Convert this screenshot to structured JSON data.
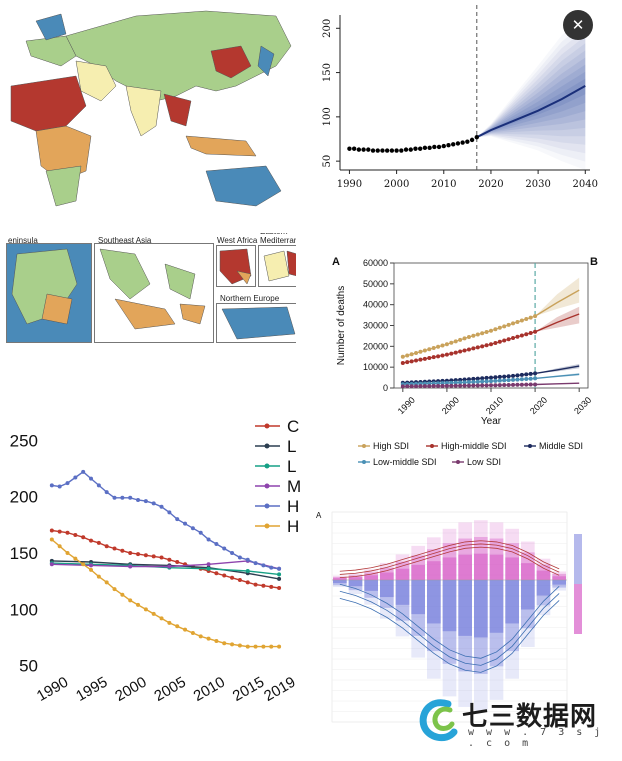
{
  "viewer": {
    "close_icon": "close-icon"
  },
  "maps": {
    "insets": [
      {
        "label": "eninsula"
      },
      {
        "label": "Southeast Asia"
      },
      {
        "label": "West Africa"
      },
      {
        "label": "Eastern Mediterrane"
      },
      {
        "label": "Northern Europe"
      }
    ],
    "colors": {
      "ocean": "#ffffff",
      "green": "#a9cf8b",
      "blue": "#4a8ab8",
      "red": "#b4382f",
      "orange": "#e2a55a",
      "yellow": "#f6eeb0"
    }
  },
  "chart_data": [
    {
      "id": "projection",
      "type": "line",
      "x_ticks": [
        "1990",
        "2000",
        "2010",
        "2020",
        "2030",
        "2040"
      ],
      "y_ticks": [
        "50",
        "100",
        "150",
        "200"
      ],
      "xlim": [
        1988,
        2041
      ],
      "ylim": [
        40,
        215
      ],
      "observed": {
        "x": [
          1990,
          1991,
          1992,
          1993,
          1994,
          1995,
          1996,
          1997,
          1998,
          1999,
          2000,
          2001,
          2002,
          2003,
          2004,
          2005,
          2006,
          2007,
          2008,
          2009,
          2010,
          2011,
          2012,
          2013,
          2014,
          2015,
          2016,
          2017
        ],
        "y": [
          64,
          64,
          63,
          63,
          63,
          62,
          62,
          62,
          62,
          62,
          62,
          62,
          63,
          63,
          64,
          64,
          65,
          65,
          66,
          66,
          67,
          68,
          69,
          70,
          71,
          72,
          74,
          77
        ]
      },
      "forecast": {
        "x": [
          2017,
          2020,
          2025,
          2030,
          2035,
          2040
        ],
        "y": [
          77,
          85,
          96,
          107,
          120,
          135
        ]
      },
      "forecast_band": {
        "x": [
          2017,
          2020,
          2025,
          2030,
          2035,
          2040
        ],
        "low": [
          77,
          78,
          70,
          62,
          50,
          40
        ],
        "high": [
          77,
          92,
          125,
          158,
          192,
          215
        ]
      },
      "vline_x": 2017
    },
    {
      "id": "sdi_deaths",
      "type": "line",
      "panel_labels": [
        "A",
        "B"
      ],
      "ylabel": "Number of deaths",
      "xlabel": "Year",
      "x_ticks": [
        "1990",
        "2000",
        "2010",
        "2020",
        "2030"
      ],
      "y_ticks": [
        "0",
        "10000",
        "20000",
        "30000",
        "40000",
        "50000",
        "60000"
      ],
      "xlim": [
        1988,
        2032
      ],
      "ylim": [
        0,
        60000
      ],
      "vline_x": 2020,
      "series": [
        {
          "name": "High SDI",
          "color": "#c9a25b",
          "x": [
            1990,
            1995,
            2000,
            2005,
            2010,
            2015,
            2020
          ],
          "y": [
            15000,
            18000,
            21000,
            24500,
            27500,
            31000,
            34500
          ],
          "proj_x": [
            2020,
            2025,
            2030
          ],
          "proj_y": [
            34500,
            41000,
            47000
          ],
          "proj_low": [
            34500,
            38000,
            41000
          ],
          "proj_high": [
            34500,
            45000,
            53000
          ]
        },
        {
          "name": "High-middle SDI",
          "color": "#a7322c",
          "x": [
            1990,
            1995,
            2000,
            2005,
            2010,
            2015,
            2020
          ],
          "y": [
            12000,
            14000,
            16000,
            18500,
            21000,
            24000,
            27000
          ],
          "proj_x": [
            2020,
            2025,
            2030
          ],
          "proj_y": [
            27000,
            31500,
            35500
          ],
          "proj_low": [
            27000,
            29000,
            31000
          ],
          "proj_high": [
            27000,
            34000,
            39000
          ]
        },
        {
          "name": "Middle SDI",
          "color": "#1d2b5e",
          "x": [
            1990,
            1995,
            2000,
            2005,
            2010,
            2015,
            2020
          ],
          "y": [
            2500,
            3000,
            3500,
            4200,
            5000,
            5800,
            7000
          ],
          "proj_x": [
            2020,
            2025,
            2030
          ],
          "proj_y": [
            7000,
            8700,
            10500
          ],
          "proj_low": [
            7000,
            8000,
            9500
          ],
          "proj_high": [
            7000,
            9500,
            11500
          ]
        },
        {
          "name": "Low-middle SDI",
          "color": "#4a90b5",
          "x": [
            1990,
            1995,
            2000,
            2005,
            2010,
            2015,
            2020
          ],
          "y": [
            1800,
            2100,
            2400,
            2800,
            3300,
            3900,
            4600
          ],
          "proj_x": [
            2020,
            2025,
            2030
          ],
          "proj_y": [
            4600,
            5600,
            6600
          ],
          "proj_low": [
            4600,
            5200,
            6000
          ],
          "proj_high": [
            4600,
            6000,
            7200
          ]
        },
        {
          "name": "Low SDI",
          "color": "#7a3a6e",
          "x": [
            1990,
            1995,
            2000,
            2005,
            2010,
            2015,
            2020
          ],
          "y": [
            800,
            900,
            1000,
            1150,
            1300,
            1500,
            1700
          ],
          "proj_x": [
            2020,
            2025,
            2030
          ],
          "proj_y": [
            1700,
            2000,
            2300
          ],
          "proj_low": [
            1700,
            1850,
            2100
          ],
          "proj_high": [
            1700,
            2150,
            2550
          ]
        }
      ]
    },
    {
      "id": "rates",
      "type": "line",
      "x_ticks": [
        "1990",
        "1995",
        "2000",
        "2005",
        "2010",
        "2015",
        "2019"
      ],
      "y_ticks": [
        "50",
        "100",
        "150",
        "200",
        "250"
      ],
      "xlim": [
        1989,
        2019.5
      ],
      "ylim": [
        48,
        252
      ],
      "legend_cut": [
        "C",
        "L",
        "L",
        "M",
        "H",
        "H"
      ],
      "series": [
        {
          "color": "#c0392b",
          "x": [
            1990,
            1991,
            1992,
            1993,
            1994,
            1995,
            1996,
            1997,
            1998,
            1999,
            2000,
            2001,
            2002,
            2003,
            2004,
            2005,
            2006,
            2007,
            2008,
            2009,
            2010,
            2011,
            2012,
            2013,
            2014,
            2015,
            2016,
            2017,
            2018,
            2019
          ],
          "y": [
            170,
            169,
            168,
            166,
            164,
            161,
            159,
            156,
            154,
            152,
            150,
            149,
            148,
            147,
            146,
            144,
            142,
            140,
            138,
            136,
            134,
            132,
            130,
            128,
            126,
            124,
            122,
            121,
            120,
            119
          ]
        },
        {
          "color": "#2c3e50",
          "x": [
            1990,
            1995,
            2000,
            2005,
            2010,
            2015,
            2019
          ],
          "y": [
            143,
            142,
            140,
            139,
            137,
            132,
            127
          ]
        },
        {
          "color": "#16a085",
          "x": [
            1990,
            1995,
            2000,
            2005,
            2010,
            2015,
            2019
          ],
          "y": [
            141,
            140,
            139,
            137,
            136,
            134,
            131
          ]
        },
        {
          "color": "#8e44ad",
          "x": [
            1990,
            1995,
            2000,
            2005,
            2010,
            2015,
            2019
          ],
          "y": [
            140,
            139,
            138,
            138,
            140,
            143,
            136
          ]
        },
        {
          "color": "#5b6fc4",
          "x": [
            1990,
            1991,
            1992,
            1993,
            1994,
            1995,
            1996,
            1997,
            1998,
            1999,
            2000,
            2001,
            2002,
            2003,
            2004,
            2005,
            2006,
            2007,
            2008,
            2009,
            2010,
            2011,
            2012,
            2013,
            2014,
            2015,
            2016,
            2017,
            2018,
            2019
          ],
          "y": [
            210,
            209,
            212,
            217,
            222,
            216,
            210,
            204,
            199,
            199,
            199,
            197,
            196,
            194,
            191,
            186,
            180,
            176,
            172,
            168,
            162,
            158,
            154,
            150,
            146,
            144,
            141,
            139,
            137,
            136
          ]
        },
        {
          "color": "#e0a432",
          "x": [
            1990,
            1991,
            1992,
            1993,
            1994,
            1995,
            1996,
            1997,
            1998,
            1999,
            2000,
            2001,
            2002,
            2003,
            2004,
            2005,
            2006,
            2007,
            2008,
            2009,
            2010,
            2011,
            2012,
            2013,
            2014,
            2015,
            2016,
            2017,
            2018,
            2019
          ],
          "y": [
            162,
            156,
            150,
            145,
            140,
            135,
            129,
            124,
            118,
            113,
            108,
            104,
            100,
            96,
            92,
            88,
            85,
            82,
            79,
            76,
            74,
            72,
            70,
            69,
            68,
            67,
            67,
            67,
            67,
            67
          ]
        }
      ]
    },
    {
      "id": "mirror",
      "type": "bar",
      "panel_label": "A",
      "bars_positive": [
        2,
        3,
        5,
        8,
        12,
        16,
        20,
        24,
        27,
        28,
        27,
        24,
        18,
        10,
        4
      ],
      "bars_negative": [
        2,
        4,
        7,
        11,
        16,
        22,
        28,
        33,
        36,
        37,
        34,
        28,
        19,
        10,
        3
      ],
      "colors": {
        "positive": "#d75fc7",
        "negative": "#6b74d9",
        "line_pos": "#b33a3a",
        "line_neg": "#3d6fb2"
      }
    }
  ],
  "watermark": {
    "title": "七三数据网",
    "url": "w w w . 7 3 s j . c o m",
    "logo_icon": "c-swirl-logo-icon"
  }
}
